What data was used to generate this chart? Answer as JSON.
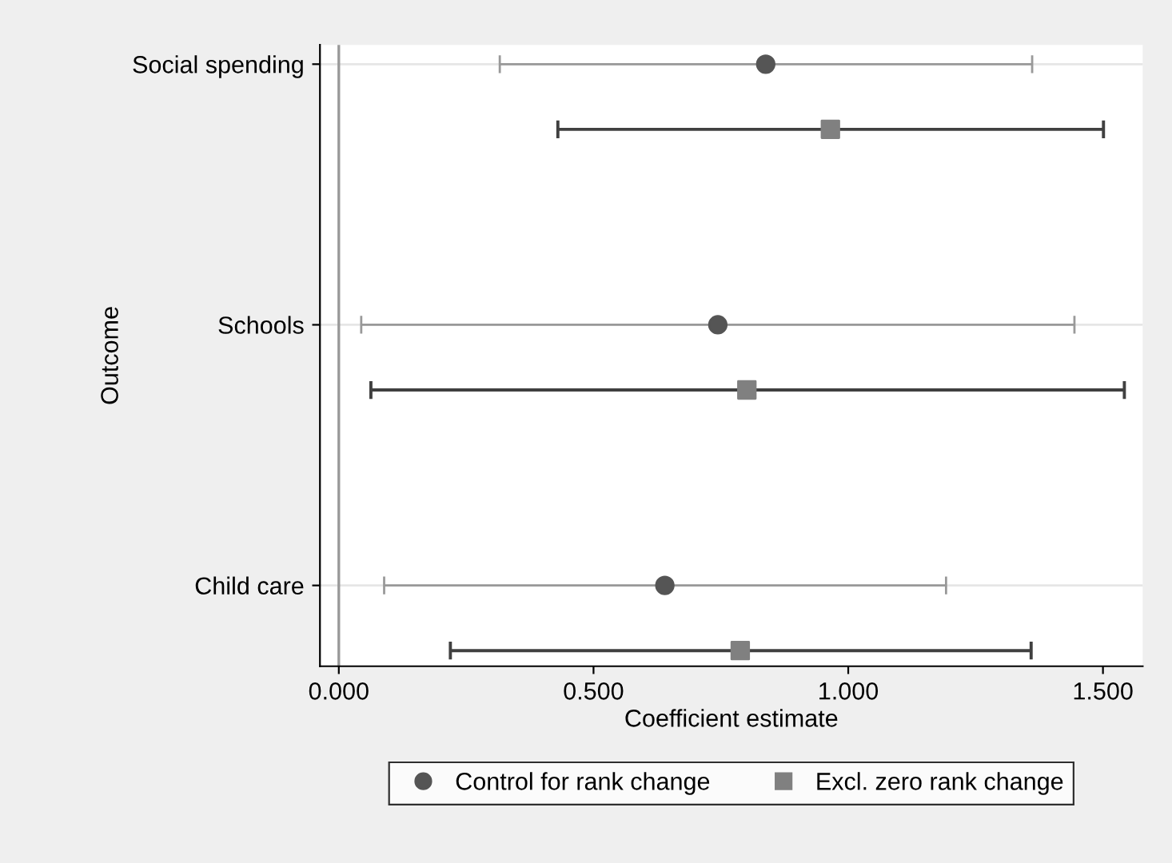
{
  "chart_data": {
    "type": "scatter",
    "orientation": "horizontal",
    "xlabel": "Coefficient estimate",
    "ylabel": "Outcome",
    "categories": [
      "Social spending",
      "Schools",
      "Child care"
    ],
    "series": [
      {
        "name": "Control for rank change",
        "color": "#555555",
        "marker": "circle",
        "values": [
          0.838,
          0.744,
          0.64
        ],
        "errors": [
          [
            0.316,
            1.361
          ],
          [
            0.044,
            1.444
          ],
          [
            0.089,
            1.192
          ]
        ]
      },
      {
        "name": "Excl. zero rank change",
        "color": "#808080",
        "marker": "square",
        "values": [
          0.965,
          0.801,
          0.788
        ],
        "errors": [
          [
            0.43,
            1.501
          ],
          [
            0.063,
            1.542
          ],
          [
            0.219,
            1.359
          ]
        ]
      }
    ],
    "xlim": [
      -0.037,
      1.578
    ],
    "xticks": [
      {
        "value": 0,
        "label": "0.000"
      },
      {
        "value": 0.5,
        "label": "0.500"
      },
      {
        "value": 1.0,
        "label": "1.000"
      },
      {
        "value": 1.5,
        "label": "1.500"
      }
    ],
    "ref_lines": [
      {
        "axis": "x",
        "value": 0,
        "color": "#999999"
      }
    ],
    "grid": "y",
    "legend": "bottom"
  }
}
